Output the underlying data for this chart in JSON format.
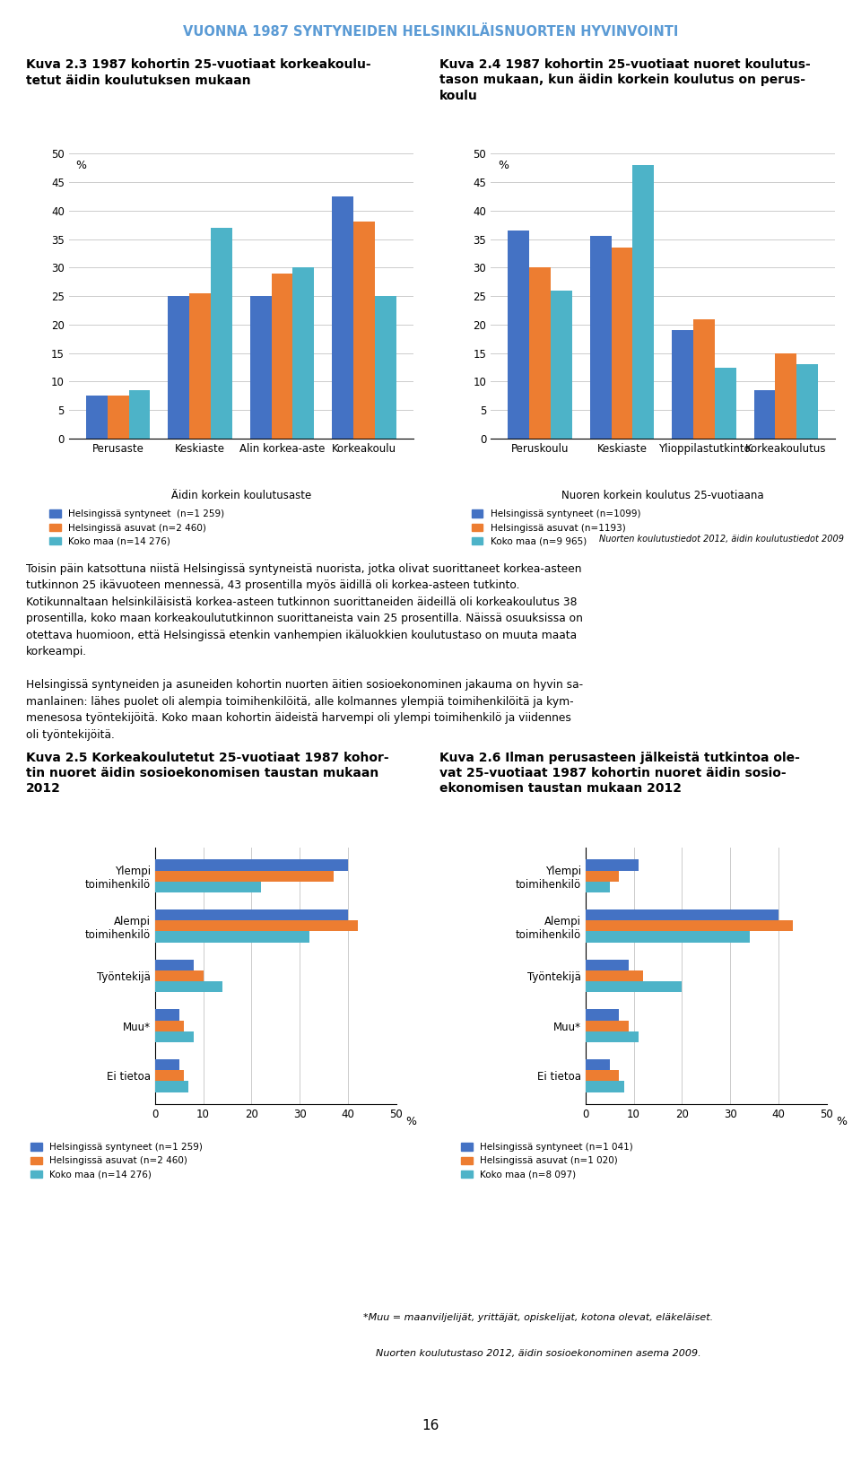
{
  "page_title": "VUONNA 1987 SYNTYNEIDEN HELSINKILÄISNUORTEN HYVINVOINTI",
  "page_title_color": "#5B9BD5",
  "chart1_title1": "Kuva 2.3 1987 kohortin 25-vuotiaat korkeakoulu-",
  "chart1_title2": "tetut äidin koulutuksen mukaan",
  "chart1_xlabel": "Äidin korkein koulutusaste",
  "chart1_ylabel": "%",
  "chart1_ylim": [
    0,
    50
  ],
  "chart1_yticks": [
    0,
    5,
    10,
    15,
    20,
    25,
    30,
    35,
    40,
    45,
    50
  ],
  "chart1_categories": [
    "Perusaste",
    "Keskiaste",
    "Alin korkea-aste",
    "Korkeakoulu"
  ],
  "chart1_series": {
    "Helsingissä syntyneet  (n=1 259)": [
      7.5,
      25,
      25,
      42.5
    ],
    "Helsingissä asuvat (n=2 460)": [
      7.5,
      25.5,
      29,
      38
    ],
    "Koko maa (n=14 276)": [
      8.5,
      37,
      30,
      25
    ]
  },
  "chart1_colors": [
    "#4472C4",
    "#ED7D31",
    "#4DB3C8"
  ],
  "chart2_title1": "Kuva 2.4 1987 kohortin 25-vuotiaat nuoret koulutus-",
  "chart2_title2": "tason mukaan, kun äidin korkein koulutus on perus-",
  "chart2_title3": "koulu",
  "chart2_xlabel": "Nuoren korkein koulutus 25-vuotiaana",
  "chart2_ylabel": "%",
  "chart2_ylim": [
    0,
    50
  ],
  "chart2_yticks": [
    0,
    5,
    10,
    15,
    20,
    25,
    30,
    35,
    40,
    45,
    50
  ],
  "chart2_categories": [
    "Peruskoulu",
    "Keskiaste",
    "Ylioppilastutkinto",
    "Korkeakoulutus"
  ],
  "chart2_series": {
    "Helsingissä syntyneet (n=1099)": [
      36.5,
      35.5,
      19,
      8.5
    ],
    "Helsingissä asuvat (n=1193)": [
      30,
      33.5,
      21,
      15
    ],
    "Koko maa (n=9 965)": [
      26,
      48,
      12.5,
      13
    ]
  },
  "chart2_colors": [
    "#4472C4",
    "#ED7D31",
    "#4DB3C8"
  ],
  "chart2_source": "Nuorten koulutustiedot 2012, äidin koulutustiedot 2009",
  "chart3_title1": "Kuva 2.5 Korkeakoulutetut 25-vuotiaat 1987 kohor-",
  "chart3_title2": "tin nuoret äidin sosioekonomisen taustan mukaan",
  "chart3_title3": "2012",
  "chart3_categories": [
    "Ylempi\ntoimihenkilö",
    "Alempi\ntoimihenkilö",
    "Työntekijä",
    "Muu*",
    "Ei tietoa"
  ],
  "chart3_series": {
    "Helsingissä syntyneet (n=1 259)": [
      40,
      40,
      8,
      5,
      5
    ],
    "Helsingissä asuvat (n=2 460)": [
      37,
      42,
      10,
      6,
      6
    ],
    "Koko maa (n=14 276)": [
      22,
      32,
      14,
      8,
      7
    ]
  },
  "chart3_colors": [
    "#4472C4",
    "#ED7D31",
    "#4DB3C8"
  ],
  "chart3_xlim": [
    0,
    50
  ],
  "chart3_xticks": [
    0,
    10,
    20,
    30,
    40,
    50
  ],
  "chart4_title1": "Kuva 2.6 Ilman perusasteen jälkeistä tutkintoa ole-",
  "chart4_title2": "vat 25-vuotiaat 1987 kohortin nuoret äidin sosio-",
  "chart4_title3": "ekonomisen taustan mukaan 2012",
  "chart4_categories": [
    "Ylempi\ntoimihenkilö",
    "Alempi\ntoimihenkilö",
    "Työntekijä",
    "Muu*",
    "Ei tietoa"
  ],
  "chart4_series": {
    "Helsingissä syntyneet (n=1 041)": [
      11,
      40,
      9,
      7,
      5
    ],
    "Helsingissä asuvat (n=1 020)": [
      7,
      43,
      12,
      9,
      7
    ],
    "Koko maa (n=8 097)": [
      5,
      34,
      20,
      11,
      8
    ]
  },
  "chart4_colors": [
    "#4472C4",
    "#ED7D31",
    "#4DB3C8"
  ],
  "chart4_xlim": [
    0,
    50
  ],
  "chart4_xticks": [
    0,
    10,
    20,
    30,
    40,
    50
  ],
  "body_text_lines": [
    "Toisin päin katsottuna niistä Helsingissä syntyneistä nuorista, jotka olivat suorittaneet korkea-asteen",
    "tutkinnon 25 ikävuoteen mennessä, 43 prosentilla myös äidillä oli korkea-asteen tutkinto.",
    "Kotikunnaltaan helsinkiläisistä korkea-asteen tutkinnon suorittaneiden äideillä oli korkeakoulutus 38",
    "prosentilla, koko maan korkeakoulututkinnon suorittaneista vain 25 prosentilla. Näissä osuuksissa on",
    "otettava huomioon, että Helsingissä etenkin vanhempien ikäluokkien koulutustaso on muuta maata",
    "korkeampi.",
    "",
    "Helsingissä syntyneiden ja asuneiden kohortin nuorten äitien sosioekonominen jakauma on hyvin sa-",
    "manlainen: lähes puolet oli alempia toimihenkilöitä, alle kolmannes ylempiä toimihenkilöitä ja kym-",
    "menesosa työntekijöitä. Koko maan kohortin äideistä harvempi oli ylempi toimihenkilö ja viidennes",
    "oli työntekijöitä."
  ],
  "footnote1": "*Muu = maanviljelijät, yrittäjät, opiskelijat, kotona olevat, eläkeläiset.",
  "footnote2": "Nuorten koulutustaso 2012, äidin sosioekonominen asema 2009.",
  "page_number": "16",
  "bg_color": "#FFFFFF",
  "grid_color": "#CCCCCC",
  "text_color": "#333333"
}
